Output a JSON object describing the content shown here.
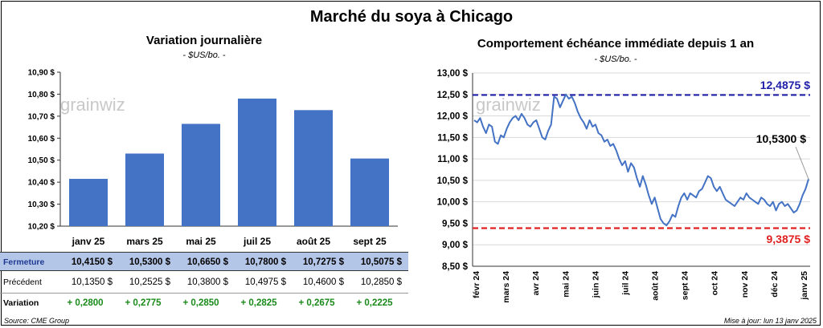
{
  "header": {
    "title": "Marché du soya à Chicago"
  },
  "left": {
    "title": "Variation journalière",
    "unit": "- $US/bo. -",
    "watermark": "grainwiz"
  },
  "right": {
    "title": "Comportement échéance immédiate depuis 1 an",
    "unit": "- $US/bo. -",
    "watermark": "grainwiz",
    "annotations": {
      "high": "12,4875 $",
      "low": "9,3875 $",
      "last": "10,5300 $"
    }
  },
  "table": {
    "rows": [
      {
        "label": "Fermeture",
        "values": [
          "10,4150  $",
          "10,5300  $",
          "10,6650  $",
          "10,7800  $",
          "10,7275  $",
          "10,5075  $"
        ]
      },
      {
        "label": "Précédent",
        "values": [
          "10,1350  $",
          "10,2525  $",
          "10,3800  $",
          "10,4975  $",
          "10,4600  $",
          "10,2850  $"
        ]
      },
      {
        "label": "Variation",
        "values": [
          "+ 0,2800",
          "+ 0,2775",
          "+ 0,2850",
          "+ 0,2825",
          "+ 0,2675",
          "+ 0,2225"
        ]
      }
    ]
  },
  "footer": {
    "source": "Source: CME Group",
    "updated": "Mise à jour: lun 13 janv 2025"
  },
  "colors": {
    "bar": "#4472c4",
    "line": "#4472c4",
    "high": "#1f1fa8",
    "low": "#e02020",
    "grid": "#d9d9d9",
    "variation": "#1a8a1a"
  },
  "chart_data": [
    {
      "type": "bar",
      "title": "Variation journalière",
      "categories": [
        "janv 25",
        "mars 25",
        "mai 25",
        "juil 25",
        "août 25",
        "sept 25"
      ],
      "values": [
        10.415,
        10.53,
        10.665,
        10.78,
        10.7275,
        10.5075
      ],
      "ylim": [
        10.2,
        10.9
      ],
      "yticks": [
        "10,20 $",
        "10,30 $",
        "10,40 $",
        "10,50 $",
        "10,60 $",
        "10,70 $",
        "10,80 $",
        "10,90 $"
      ],
      "grid": false
    },
    {
      "type": "line",
      "title": "Comportement échéance immédiate depuis 1 an",
      "xlabels": [
        "févr 24",
        "mars 24",
        "avr 24",
        "mai 24",
        "juin 24",
        "juil 24",
        "août 24",
        "sept 24",
        "oct 24",
        "nov 24",
        "déc 24",
        "janv 25"
      ],
      "ylim": [
        8.5,
        13.0
      ],
      "yticks": [
        "8,50 $",
        "9,00 $",
        "9,50 $",
        "10,00 $",
        "10,50 $",
        "11,00 $",
        "11,50 $",
        "12,00 $",
        "12,50 $",
        "13,00 $"
      ],
      "grid": true,
      "high": 12.4875,
      "low": 9.3875,
      "last": 10.53,
      "values": [
        11.9,
        11.85,
        11.95,
        11.75,
        11.6,
        11.8,
        11.75,
        11.4,
        11.35,
        11.55,
        11.5,
        11.7,
        11.85,
        11.95,
        12.0,
        11.9,
        12.05,
        11.95,
        11.8,
        11.75,
        11.85,
        11.9,
        11.7,
        11.5,
        11.45,
        11.65,
        11.8,
        12.45,
        12.4,
        12.2,
        12.35,
        12.5,
        12.4,
        12.45,
        12.3,
        12.1,
        11.95,
        11.85,
        11.7,
        11.9,
        11.75,
        11.8,
        11.6,
        11.55,
        11.4,
        11.45,
        11.3,
        11.35,
        11.2,
        11.0,
        10.85,
        10.95,
        10.7,
        10.9,
        10.8,
        10.55,
        10.35,
        10.6,
        10.4,
        10.15,
        9.95,
        10.1,
        9.85,
        9.6,
        9.5,
        9.45,
        9.55,
        9.7,
        9.65,
        9.9,
        10.1,
        10.2,
        10.05,
        10.2,
        10.15,
        10.1,
        10.25,
        10.3,
        10.45,
        10.6,
        10.55,
        10.35,
        10.25,
        10.35,
        10.2,
        10.05,
        10.0,
        9.95,
        9.9,
        10.0,
        10.1,
        10.05,
        10.2,
        10.1,
        10.05,
        10.0,
        9.95,
        10.1,
        10.05,
        9.95,
        9.9,
        10.0,
        9.8,
        9.95,
        10.0,
        9.9,
        9.95,
        9.85,
        9.75,
        9.8,
        9.95,
        10.15,
        10.3,
        10.53
      ]
    }
  ]
}
